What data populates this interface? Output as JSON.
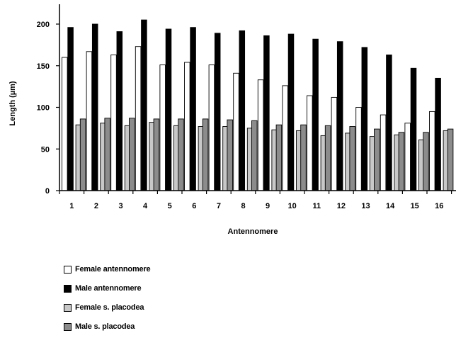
{
  "chart_data": {
    "type": "bar",
    "title": "",
    "xlabel": "Antennomere",
    "ylabel": "Length (µm)",
    "ylim": [
      0,
      225
    ],
    "yticks": [
      0,
      50,
      100,
      150,
      200
    ],
    "grid": false,
    "legend_position": "bottom-left",
    "categories": [
      "1",
      "2",
      "3",
      "4",
      "5",
      "6",
      "7",
      "8",
      "9",
      "10",
      "11",
      "12",
      "13",
      "14",
      "15",
      "16"
    ],
    "series": [
      {
        "name": "Female antennomere",
        "color": "#ffffff",
        "values": [
          160,
          167,
          163,
          173,
          151,
          154,
          151,
          141,
          133,
          126,
          114,
          112,
          100,
          91,
          81,
          95
        ]
      },
      {
        "name": "Male antennomere",
        "color": "#000000",
        "values": [
          196,
          200,
          191,
          205,
          194,
          196,
          189,
          192,
          186,
          188,
          182,
          179,
          172,
          163,
          147,
          135
        ]
      },
      {
        "name": "Female s. placodea",
        "color": "#c8c8c8",
        "values": [
          79,
          81,
          78,
          82,
          78,
          77,
          77,
          75,
          73,
          72,
          66,
          69,
          65,
          67,
          61,
          72
        ]
      },
      {
        "name": "Male s. placodea",
        "color": "#8c8c8c",
        "values": [
          86,
          87,
          87,
          86,
          86,
          86,
          85,
          84,
          79,
          79,
          78,
          77,
          74,
          70,
          70,
          74
        ]
      }
    ]
  }
}
